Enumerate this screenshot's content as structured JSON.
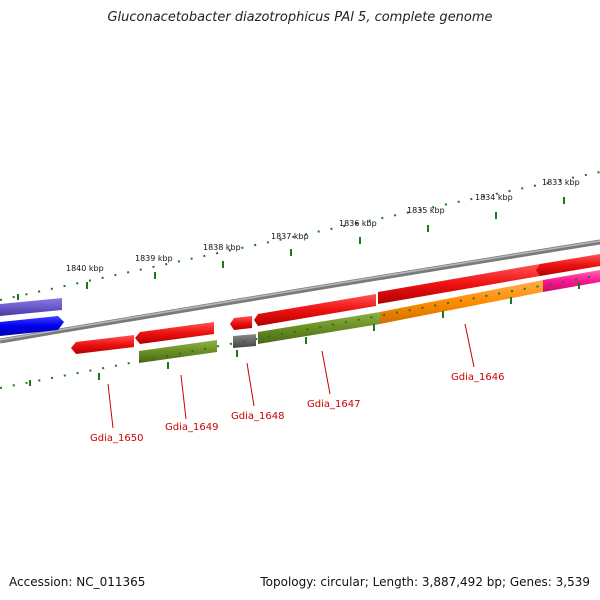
{
  "title": "Gluconacetobacter diazotrophicus PAl 5, complete genome",
  "footer": {
    "accession": "Accession: NC_011365",
    "summary": "Topology: circular; Length: 3,887,492 bp; Genes: 3,539"
  },
  "kbp_labels": [
    "1840 kbp",
    "1839 kbp",
    "1838 kbp",
    "1837 kbp",
    "1836 kbp",
    "1835 kbp",
    "1834 kbp",
    "1833 kbp"
  ],
  "gene_labels": [
    "Gdia_1650",
    "Gdia_1649",
    "Gdia_1648",
    "Gdia_1647",
    "Gdia_1646"
  ],
  "colors": {
    "backbone": "#888888",
    "tick": "#1a7a1a",
    "red": "#ee1111",
    "green": "#6b8e23",
    "orange": "#ff8c00",
    "pink": "#ff1493",
    "blue": "#0000ee",
    "violet": "#6a5acd",
    "gray": "#666666",
    "label": "#cc0000"
  }
}
